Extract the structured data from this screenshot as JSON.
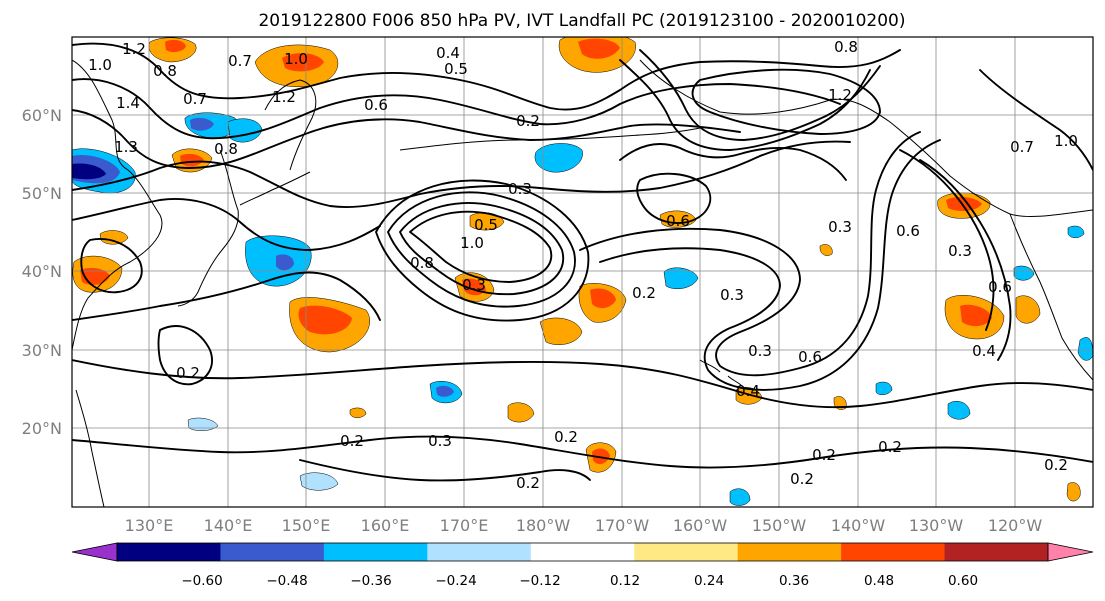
{
  "title": "2019122800 F006 850 hPa PV, IVT Landfall PC (2019123100 - 2020010200)",
  "lat_labels": [
    "60°N",
    "50°N",
    "40°N",
    "30°N",
    "20°N"
  ],
  "lon_labels": [
    "130°E",
    "140°E",
    "150°E",
    "160°E",
    "170°E",
    "180°W",
    "170°W",
    "160°W",
    "150°W",
    "140°W",
    "130°W",
    "120°W"
  ],
  "colorbar": {
    "colors": [
      "#9932cc",
      "#000080",
      "#3a5bcd",
      "#00bfff",
      "#b0e2ff",
      "#ffffff",
      "#ffe985",
      "#ffa500",
      "#ff4500",
      "#b22222",
      "#ff82ab"
    ],
    "tick_labels": [
      "−0.60",
      "−0.48",
      "−0.36",
      "−0.24",
      "−0.12",
      "0.12",
      "0.24",
      "0.36",
      "0.48",
      "0.60"
    ]
  },
  "contour_labels": [
    "1.2",
    "1.0",
    "0.8",
    "0.7",
    "1.4",
    "1.3",
    "0.4",
    "0.5",
    "0.6",
    "0.2",
    "0.3",
    "0.7",
    "1.0",
    "0.8",
    "1.2",
    "1.2",
    "1.0",
    "0.8",
    "0.5",
    "1.0",
    "0.8",
    "0.3",
    "0.3",
    "0.6",
    "0.3",
    "0.6",
    "0.3",
    "0.6",
    "0.4",
    "0.6",
    "0.2",
    "0.3",
    "0.2",
    "0.2",
    "0.2",
    "0.2",
    "0.2",
    "0.2",
    "0.3",
    "0.4",
    "0.2",
    "0.2",
    "0.7"
  ]
}
